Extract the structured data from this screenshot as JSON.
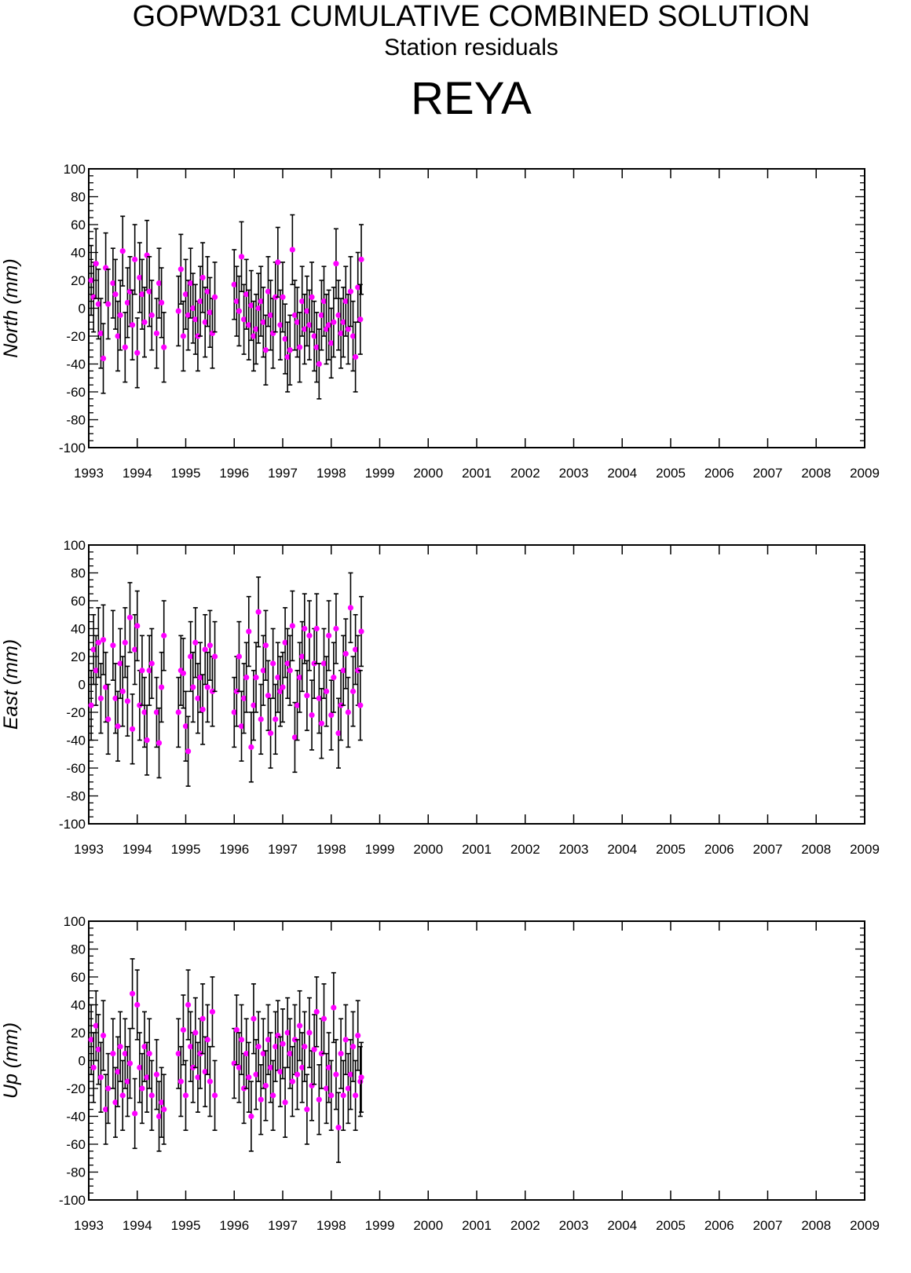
{
  "header": {
    "title": "GOPWD31 CUMULATIVE COMBINED SOLUTION",
    "subtitle": "Station residuals",
    "station": "REYA"
  },
  "chart_data": [
    {
      "type": "scatter",
      "ylabel": "North (mm)",
      "xlim": [
        1993,
        2009
      ],
      "ylim": [
        -100,
        100
      ],
      "x_ticks": [
        "1993",
        "1994",
        "1995",
        "1996",
        "1997",
        "1998",
        "1999",
        "2000",
        "2001",
        "2002",
        "2003",
        "2004",
        "2005",
        "2006",
        "2007",
        "2008",
        "2009"
      ],
      "y_ticks": [
        "100",
        "80",
        "60",
        "40",
        "20",
        "0",
        "-20",
        "-40",
        "-60",
        "-80",
        "-100"
      ],
      "marker_color": "#ff00ff",
      "errorbar_color": "#000000",
      "x": [
        1993.05,
        1993.1,
        1993.15,
        1993.2,
        1993.25,
        1993.3,
        1993.35,
        1993.4,
        1993.5,
        1993.55,
        1993.6,
        1993.65,
        1993.7,
        1993.75,
        1993.8,
        1993.85,
        1993.9,
        1993.95,
        1994.0,
        1994.05,
        1994.1,
        1994.15,
        1994.2,
        1994.25,
        1994.3,
        1994.4,
        1994.45,
        1994.5,
        1994.55,
        1994.85,
        1994.9,
        1994.95,
        1995.0,
        1995.05,
        1995.1,
        1995.15,
        1995.2,
        1995.25,
        1995.3,
        1995.35,
        1995.4,
        1995.45,
        1995.5,
        1995.55,
        1995.6,
        1996.0,
        1996.05,
        1996.1,
        1996.15,
        1996.2,
        1996.25,
        1996.3,
        1996.35,
        1996.4,
        1996.45,
        1996.5,
        1996.55,
        1996.6,
        1996.65,
        1996.7,
        1996.75,
        1996.8,
        1996.85,
        1996.9,
        1996.95,
        1997.0,
        1997.05,
        1997.1,
        1997.15,
        1997.2,
        1997.25,
        1997.3,
        1997.35,
        1997.4,
        1997.45,
        1997.5,
        1997.55,
        1997.6,
        1997.65,
        1997.7,
        1997.75,
        1997.8,
        1997.85,
        1997.9,
        1997.95,
        1998.0,
        1998.05,
        1998.1,
        1998.15,
        1998.2,
        1998.25,
        1998.3,
        1998.35,
        1998.4,
        1998.45,
        1998.5,
        1998.55,
        1998.6,
        1998.62
      ],
      "y": [
        20,
        8,
        32,
        3,
        -18,
        -36,
        29,
        3,
        18,
        10,
        -20,
        -5,
        41,
        -28,
        4,
        12,
        -12,
        35,
        -32,
        22,
        10,
        -10,
        38,
        12,
        -5,
        -18,
        18,
        4,
        -28,
        -2,
        28,
        -20,
        10,
        -5,
        18,
        0,
        -8,
        -20,
        5,
        22,
        -10,
        12,
        -3,
        -18,
        8,
        17,
        5,
        -2,
        37,
        -8,
        10,
        -12,
        2,
        -20,
        -15,
        0,
        5,
        -10,
        -30,
        12,
        -5,
        -18,
        8,
        33,
        -12,
        8,
        -22,
        -35,
        -30,
        42,
        -5,
        -10,
        -28,
        5,
        -15,
        -2,
        -12,
        8,
        -20,
        -28,
        -40,
        -5,
        5,
        -15,
        -12,
        -25,
        -10,
        32,
        -5,
        -18,
        -10,
        5,
        -15,
        12,
        -20,
        -35,
        15,
        -8,
        35
      ],
      "err": [
        25,
        25,
        25,
        25,
        25,
        25,
        25,
        25,
        25,
        25,
        25,
        25,
        25,
        25,
        25,
        25,
        25,
        25,
        25,
        25,
        25,
        25,
        25,
        25,
        25,
        25,
        25,
        25,
        25,
        25,
        25,
        25,
        25,
        25,
        25,
        25,
        25,
        25,
        25,
        25,
        25,
        25,
        25,
        25,
        25,
        25,
        25,
        25,
        25,
        25,
        25,
        25,
        25,
        25,
        25,
        25,
        25,
        25,
        25,
        25,
        25,
        25,
        25,
        25,
        25,
        25,
        25,
        25,
        25,
        25,
        25,
        25,
        25,
        25,
        25,
        25,
        25,
        25,
        25,
        25,
        25,
        25,
        25,
        25,
        25,
        25,
        25,
        25,
        25,
        25,
        25,
        25,
        25,
        25,
        25,
        25,
        25,
        25,
        25
      ]
    },
    {
      "type": "scatter",
      "ylabel": "East (mm)",
      "xlim": [
        1993,
        2009
      ],
      "ylim": [
        -100,
        100
      ],
      "x_ticks": [
        "1993",
        "1994",
        "1995",
        "1996",
        "1997",
        "1998",
        "1999",
        "2000",
        "2001",
        "2002",
        "2003",
        "2004",
        "2005",
        "2006",
        "2007",
        "2008",
        "2009"
      ],
      "y_ticks": [
        "100",
        "80",
        "60",
        "40",
        "20",
        "0",
        "-20",
        "-40",
        "-60",
        "-80",
        "-100"
      ],
      "marker_color": "#ff00ff",
      "errorbar_color": "#000000",
      "x": [
        1993.05,
        1993.1,
        1993.15,
        1993.2,
        1993.25,
        1993.3,
        1993.35,
        1993.4,
        1993.5,
        1993.55,
        1993.6,
        1993.65,
        1993.7,
        1993.75,
        1993.8,
        1993.85,
        1993.9,
        1993.95,
        1994.0,
        1994.05,
        1994.1,
        1994.15,
        1994.2,
        1994.25,
        1994.3,
        1994.4,
        1994.45,
        1994.5,
        1994.55,
        1994.85,
        1994.9,
        1994.95,
        1995.0,
        1995.05,
        1995.1,
        1995.15,
        1995.2,
        1995.25,
        1995.3,
        1995.35,
        1995.4,
        1995.45,
        1995.5,
        1995.55,
        1995.6,
        1996.0,
        1996.05,
        1996.1,
        1996.15,
        1996.2,
        1996.25,
        1996.3,
        1996.35,
        1996.4,
        1996.45,
        1996.5,
        1996.55,
        1996.6,
        1996.65,
        1996.7,
        1996.75,
        1996.8,
        1996.85,
        1996.9,
        1996.95,
        1997.0,
        1997.05,
        1997.1,
        1997.15,
        1997.2,
        1997.25,
        1997.3,
        1997.35,
        1997.4,
        1997.45,
        1997.5,
        1997.55,
        1997.6,
        1997.65,
        1997.7,
        1997.75,
        1997.8,
        1997.85,
        1997.9,
        1997.95,
        1998.0,
        1998.05,
        1998.1,
        1998.15,
        1998.2,
        1998.25,
        1998.3,
        1998.35,
        1998.4,
        1998.45,
        1998.5,
        1998.55,
        1998.6,
        1998.62
      ],
      "y": [
        -15,
        25,
        10,
        30,
        -10,
        32,
        -2,
        -25,
        28,
        -10,
        -30,
        15,
        -5,
        30,
        -12,
        48,
        -32,
        25,
        42,
        -15,
        10,
        -20,
        -40,
        10,
        15,
        -20,
        -42,
        -2,
        35,
        -20,
        10,
        8,
        -30,
        -48,
        20,
        -2,
        30,
        -10,
        5,
        -18,
        25,
        -2,
        28,
        -5,
        20,
        -20,
        -5,
        20,
        -30,
        -10,
        5,
        38,
        -45,
        -15,
        5,
        52,
        -25,
        10,
        28,
        -8,
        -35,
        15,
        -25,
        5,
        -5,
        -2,
        30,
        15,
        10,
        42,
        -38,
        -15,
        5,
        20,
        40,
        -8,
        35,
        -22,
        15,
        40,
        -10,
        -28,
        15,
        -5,
        35,
        -22,
        5,
        40,
        -35,
        -15,
        10,
        22,
        -20,
        55,
        -5,
        25,
        10,
        -15,
        38
      ],
      "err": [
        25,
        25,
        25,
        25,
        25,
        25,
        25,
        25,
        25,
        25,
        25,
        25,
        25,
        25,
        25,
        25,
        25,
        25,
        25,
        25,
        25,
        25,
        25,
        25,
        25,
        25,
        25,
        25,
        25,
        25,
        25,
        25,
        25,
        25,
        25,
        25,
        25,
        25,
        25,
        25,
        25,
        25,
        25,
        25,
        25,
        25,
        25,
        25,
        25,
        25,
        25,
        25,
        25,
        25,
        25,
        25,
        25,
        25,
        25,
        25,
        25,
        25,
        25,
        25,
        25,
        25,
        25,
        25,
        25,
        25,
        25,
        25,
        25,
        25,
        25,
        25,
        25,
        25,
        25,
        25,
        25,
        25,
        25,
        25,
        25,
        25,
        25,
        25,
        25,
        25,
        25,
        25,
        25,
        25,
        25,
        25,
        25,
        25,
        25
      ]
    },
    {
      "type": "scatter",
      "ylabel": "Up (mm)",
      "xlim": [
        1993,
        2009
      ],
      "ylim": [
        -100,
        100
      ],
      "x_ticks": [
        "1993",
        "1994",
        "1995",
        "1996",
        "1997",
        "1998",
        "1999",
        "2000",
        "2001",
        "2002",
        "2003",
        "2004",
        "2005",
        "2006",
        "2007",
        "2008",
        "2009"
      ],
      "y_ticks": [
        "100",
        "80",
        "60",
        "40",
        "20",
        "0",
        "-20",
        "-40",
        "-60",
        "-80",
        "-100"
      ],
      "marker_color": "#ff00ff",
      "errorbar_color": "#000000",
      "x": [
        1993.05,
        1993.1,
        1993.15,
        1993.2,
        1993.25,
        1993.3,
        1993.35,
        1993.4,
        1993.5,
        1993.55,
        1993.6,
        1993.65,
        1993.7,
        1993.75,
        1993.8,
        1993.85,
        1993.9,
        1993.95,
        1994.0,
        1994.05,
        1994.1,
        1994.15,
        1994.2,
        1994.25,
        1994.3,
        1994.4,
        1994.45,
        1994.5,
        1994.55,
        1994.85,
        1994.9,
        1994.95,
        1995.0,
        1995.05,
        1995.1,
        1995.15,
        1995.2,
        1995.25,
        1995.3,
        1995.35,
        1995.4,
        1995.45,
        1995.5,
        1995.55,
        1995.6,
        1996.0,
        1996.05,
        1996.1,
        1996.15,
        1996.2,
        1996.25,
        1996.3,
        1996.35,
        1996.4,
        1996.45,
        1996.5,
        1996.55,
        1996.6,
        1996.65,
        1996.7,
        1996.75,
        1996.8,
        1996.85,
        1996.9,
        1996.95,
        1997.0,
        1997.05,
        1997.1,
        1997.15,
        1997.2,
        1997.25,
        1997.3,
        1997.35,
        1997.4,
        1997.45,
        1997.5,
        1997.55,
        1997.6,
        1997.65,
        1997.7,
        1997.75,
        1997.8,
        1997.85,
        1997.9,
        1997.95,
        1998.0,
        1998.05,
        1998.1,
        1998.15,
        1998.2,
        1998.25,
        1998.3,
        1998.35,
        1998.4,
        1998.45,
        1998.5,
        1998.55,
        1998.6,
        1998.62
      ],
      "y": [
        15,
        -5,
        25,
        8,
        -12,
        18,
        -35,
        -20,
        5,
        -30,
        -8,
        10,
        -25,
        5,
        -15,
        -2,
        48,
        -38,
        40,
        -5,
        -20,
        10,
        -12,
        5,
        -25,
        -10,
        -40,
        -30,
        -35,
        5,
        -15,
        22,
        -25,
        40,
        10,
        -5,
        20,
        -12,
        5,
        30,
        -8,
        15,
        -15,
        35,
        -25,
        -2,
        22,
        -5,
        15,
        -20,
        5,
        -12,
        -40,
        30,
        -10,
        10,
        -28,
        5,
        -18,
        15,
        -5,
        -25,
        10,
        18,
        -8,
        12,
        -30,
        20,
        5,
        -15,
        15,
        -10,
        25,
        -5,
        10,
        -35,
        20,
        -18,
        8,
        35,
        -28,
        5,
        30,
        -20,
        -5,
        -25,
        38,
        -10,
        -48,
        5,
        -25,
        15,
        -20,
        -10,
        10,
        -25,
        18,
        -15,
        -12
      ],
      "err": [
        25,
        25,
        25,
        25,
        25,
        25,
        25,
        25,
        25,
        25,
        25,
        25,
        25,
        25,
        25,
        25,
        25,
        25,
        25,
        25,
        25,
        25,
        25,
        25,
        25,
        25,
        25,
        25,
        25,
        25,
        25,
        25,
        25,
        25,
        25,
        25,
        25,
        25,
        25,
        25,
        25,
        25,
        25,
        25,
        25,
        25,
        25,
        25,
        25,
        25,
        25,
        25,
        25,
        25,
        25,
        25,
        25,
        25,
        25,
        25,
        25,
        25,
        25,
        25,
        25,
        25,
        25,
        25,
        25,
        25,
        25,
        25,
        25,
        25,
        25,
        25,
        25,
        25,
        25,
        25,
        25,
        25,
        25,
        25,
        25,
        25,
        25,
        25,
        25,
        25,
        25,
        25,
        25,
        25,
        25,
        25,
        25,
        25,
        25
      ]
    }
  ]
}
